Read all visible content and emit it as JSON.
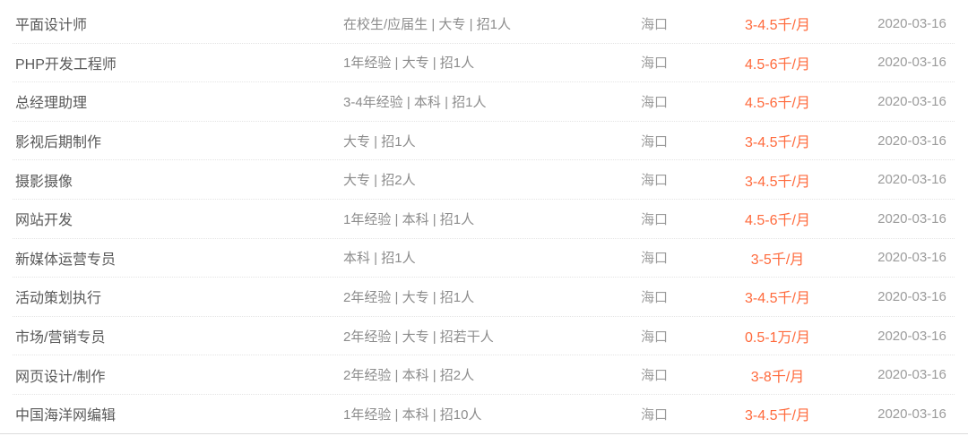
{
  "colors": {
    "salary_accent": "#ff6a3c",
    "title_text": "#595959",
    "secondary_text": "#8c8c8c",
    "muted_text": "#9b9b9b",
    "row_divider": "#e4e4e4",
    "bottom_border": "#dcdcdc"
  },
  "job_list": {
    "columns": [
      "title",
      "requirements",
      "city",
      "salary",
      "date"
    ],
    "jobs": [
      {
        "title": "平面设计师",
        "requirements": "在校生/应届生 | 大专 | 招1人",
        "city": "海口",
        "salary": "3-4.5千/月",
        "date": "2020-03-16"
      },
      {
        "title": "PHP开发工程师",
        "requirements": "1年经验 | 大专 | 招1人",
        "city": "海口",
        "salary": "4.5-6千/月",
        "date": "2020-03-16"
      },
      {
        "title": "总经理助理",
        "requirements": "3-4年经验 | 本科 | 招1人",
        "city": "海口",
        "salary": "4.5-6千/月",
        "date": "2020-03-16"
      },
      {
        "title": "影视后期制作",
        "requirements": "大专 | 招1人",
        "city": "海口",
        "salary": "3-4.5千/月",
        "date": "2020-03-16"
      },
      {
        "title": "摄影摄像",
        "requirements": "大专 | 招2人",
        "city": "海口",
        "salary": "3-4.5千/月",
        "date": "2020-03-16"
      },
      {
        "title": "网站开发",
        "requirements": "1年经验 | 本科 | 招1人",
        "city": "海口",
        "salary": "4.5-6千/月",
        "date": "2020-03-16"
      },
      {
        "title": "新媒体运营专员",
        "requirements": "本科 | 招1人",
        "city": "海口",
        "salary": "3-5千/月",
        "date": "2020-03-16"
      },
      {
        "title": "活动策划执行",
        "requirements": "2年经验 | 大专 | 招1人",
        "city": "海口",
        "salary": "3-4.5千/月",
        "date": "2020-03-16"
      },
      {
        "title": "市场/营销专员",
        "requirements": "2年经验 | 大专 | 招若干人",
        "city": "海口",
        "salary": "0.5-1万/月",
        "date": "2020-03-16"
      },
      {
        "title": "网页设计/制作",
        "requirements": "2年经验 | 本科 | 招2人",
        "city": "海口",
        "salary": "3-8千/月",
        "date": "2020-03-16"
      },
      {
        "title": "中国海洋网编辑",
        "requirements": "1年经验 | 本科 | 招10人",
        "city": "海口",
        "salary": "3-4.5千/月",
        "date": "2020-03-16"
      }
    ]
  }
}
